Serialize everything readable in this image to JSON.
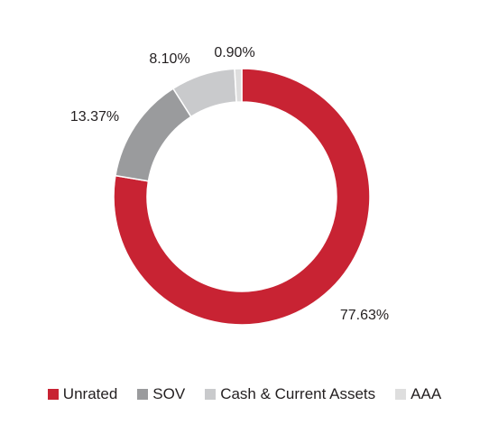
{
  "chart_data": {
    "type": "pie",
    "donut": true,
    "title": "",
    "slices": [
      {
        "label": "Unrated",
        "value": 77.63,
        "display": "77.63%",
        "color": "#c82333"
      },
      {
        "label": "SOV",
        "value": 13.37,
        "display": "13.37%",
        "color": "#9a9b9d"
      },
      {
        "label": "Cash & Current Assets",
        "value": 8.1,
        "display": "8.10%",
        "color": "#c9cacc"
      },
      {
        "label": "AAA",
        "value": 0.9,
        "display": "0.90%",
        "color": "#dedede"
      }
    ],
    "legend_position": "bottom"
  }
}
